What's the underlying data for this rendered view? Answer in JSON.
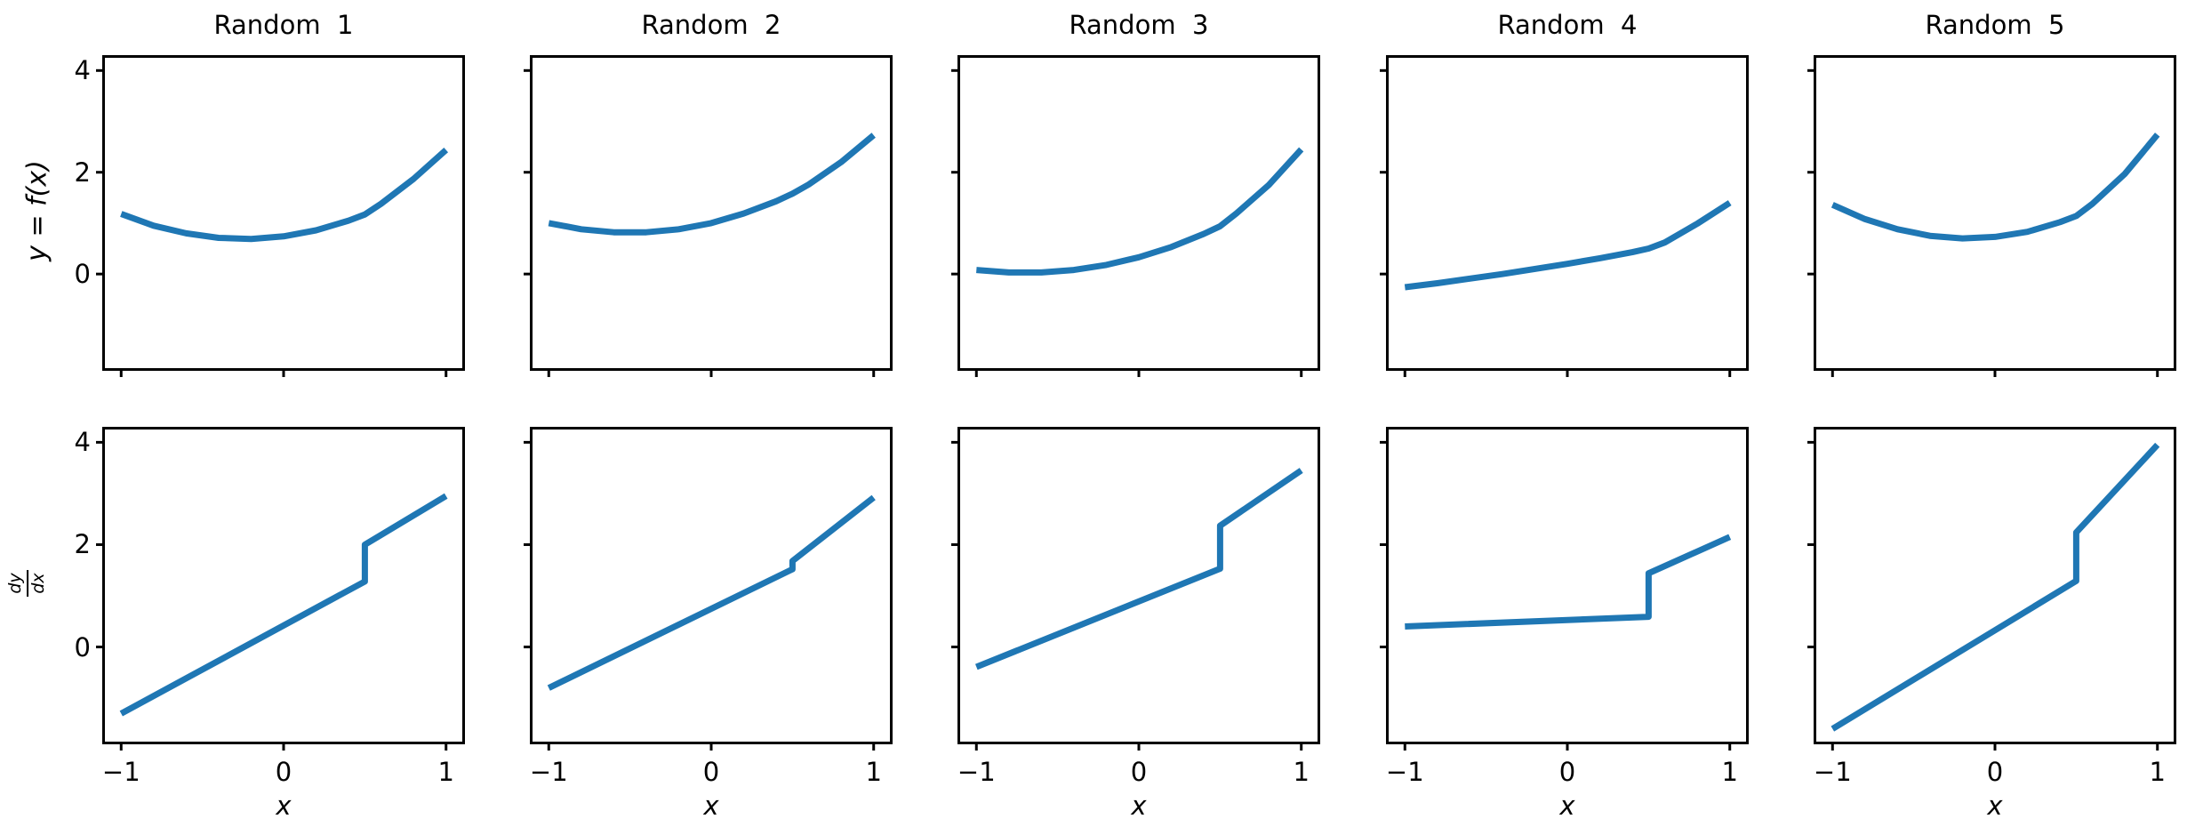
{
  "chart_data": {
    "type": "line",
    "line_color": "#1f77b4",
    "background": "#ffffff",
    "grid": false,
    "legend": false,
    "xlim": [
      -1.1,
      1.1
    ],
    "ylim": [
      -1.85,
      4.25
    ],
    "x_ticks": {
      "values": [
        -1,
        0,
        1
      ],
      "labels": [
        "−1",
        "0",
        "1"
      ]
    },
    "y_ticks": {
      "values": [
        4,
        2,
        0
      ],
      "labels": [
        "4",
        "2",
        "0"
      ]
    },
    "xlabel": "x",
    "ylabel_top": "y = f(x)",
    "ylabel_bottom": {
      "numerator": "dy",
      "denominator": "dx"
    },
    "f_x": [
      -1,
      -0.8,
      -0.6,
      -0.4,
      -0.2,
      0,
      0.2,
      0.4,
      0.5,
      0.6,
      0.8,
      1
    ],
    "dfdx_x": [
      -1,
      0.5,
      0.5,
      1
    ],
    "columns": [
      {
        "title": "Random  1",
        "f_y": [
          1.18,
          0.95,
          0.8,
          0.71,
          0.69,
          0.74,
          0.86,
          1.05,
          1.17,
          1.38,
          1.87,
          2.44
        ],
        "dfdx_y": [
          -1.3,
          1.28,
          2.0,
          2.95
        ]
      },
      {
        "title": "Random  2",
        "f_y": [
          1.0,
          0.88,
          0.82,
          0.82,
          0.88,
          1.0,
          1.19,
          1.43,
          1.58,
          1.76,
          2.2,
          2.73
        ],
        "dfdx_y": [
          -0.8,
          1.52,
          1.68,
          2.92
        ]
      },
      {
        "title": "Random  3",
        "f_y": [
          0.08,
          0.03,
          0.03,
          0.08,
          0.18,
          0.33,
          0.53,
          0.79,
          0.94,
          1.19,
          1.75,
          2.45
        ],
        "dfdx_y": [
          -0.39,
          1.53,
          2.37,
          3.45
        ]
      },
      {
        "title": "Random  4",
        "f_y": [
          -0.26,
          -0.18,
          -0.09,
          0.0,
          0.1,
          0.2,
          0.31,
          0.43,
          0.5,
          0.62,
          0.99,
          1.4
        ],
        "dfdx_y": [
          0.4,
          0.59,
          1.44,
          2.15
        ]
      },
      {
        "title": "Random  5",
        "f_y": [
          1.36,
          1.08,
          0.88,
          0.75,
          0.7,
          0.73,
          0.83,
          1.02,
          1.14,
          1.38,
          1.97,
          2.74
        ],
        "dfdx_y": [
          -1.6,
          1.29,
          2.24,
          3.95
        ]
      }
    ]
  }
}
